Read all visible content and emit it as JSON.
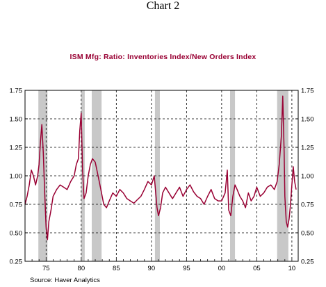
{
  "heading": "Chart 2",
  "source": "Source: Haver Analytics",
  "chart_data": {
    "type": "line",
    "title": "ISM Mfg: Ratio:  Inventories Index/New Orders Index",
    "xlabel": "",
    "ylabel": "",
    "xlim": [
      1972.0,
      2010.9
    ],
    "ylim": [
      0.25,
      1.75
    ],
    "yticks": [
      "1.75",
      "1.50",
      "1.25",
      "1.00",
      "0.75",
      "0.50",
      "0.25"
    ],
    "ytick_values": [
      1.75,
      1.5,
      1.25,
      1.0,
      0.75,
      0.5,
      0.25
    ],
    "xticks": [
      "75",
      "80",
      "85",
      "90",
      "95",
      "00",
      "05",
      "10"
    ],
    "xtick_values": [
      1975,
      1980,
      1985,
      1990,
      1995,
      2000,
      2005,
      2010
    ],
    "grid": true,
    "recession_shading": [
      [
        1973.9,
        1975.2
      ],
      [
        1980.0,
        1980.5
      ],
      [
        1981.5,
        1982.9
      ],
      [
        1990.5,
        1991.2
      ],
      [
        2001.2,
        2001.9
      ],
      [
        2007.9,
        2009.5
      ]
    ],
    "colors": {
      "line": "#990033",
      "shade": "#c8c8c8",
      "title": "#990033"
    },
    "series": [
      {
        "x": [
          1972.0,
          1972.3,
          1972.6,
          1972.9,
          1973.2,
          1973.5,
          1973.8,
          1974.0,
          1974.2,
          1974.4,
          1974.6,
          1974.8,
          1975.0,
          1975.2,
          1975.4,
          1975.7,
          1976.0,
          1976.5,
          1977.0,
          1977.5,
          1978.0,
          1978.5,
          1979.0,
          1979.3,
          1979.6,
          1979.8,
          1980.0,
          1980.2,
          1980.4,
          1980.7,
          1981.0,
          1981.3,
          1981.6,
          1982.0,
          1982.4,
          1982.8,
          1983.2,
          1983.6,
          1984.0,
          1984.5,
          1985.0,
          1985.5,
          1986.0,
          1986.5,
          1987.0,
          1987.5,
          1988.0,
          1988.5,
          1989.0,
          1989.5,
          1990.0,
          1990.4,
          1990.8,
          1991.0,
          1991.3,
          1991.6,
          1992.0,
          1992.5,
          1993.0,
          1993.5,
          1994.0,
          1994.5,
          1995.0,
          1995.5,
          1996.0,
          1996.5,
          1997.0,
          1997.5,
          1998.0,
          1998.5,
          1999.0,
          1999.5,
          2000.0,
          2000.5,
          2000.8,
          2001.0,
          2001.3,
          2001.6,
          2001.9,
          2002.2,
          2002.6,
          2003.0,
          2003.4,
          2003.8,
          2004.2,
          2004.6,
          2005.0,
          2005.5,
          2006.0,
          2006.5,
          2007.0,
          2007.5,
          2007.9,
          2008.2,
          2008.5,
          2008.7,
          2008.9,
          2009.0,
          2009.2,
          2009.4,
          2009.6,
          2009.8,
          2010.0,
          2010.2,
          2010.4,
          2010.6
        ],
        "y": [
          0.75,
          0.82,
          0.92,
          1.05,
          1.0,
          0.92,
          1.0,
          1.1,
          1.3,
          1.45,
          1.2,
          0.85,
          0.55,
          0.44,
          0.6,
          0.7,
          0.82,
          0.88,
          0.92,
          0.9,
          0.88,
          0.95,
          1.0,
          1.1,
          1.15,
          1.4,
          1.55,
          1.05,
          0.8,
          0.85,
          1.0,
          1.1,
          1.15,
          1.12,
          1.0,
          0.88,
          0.75,
          0.72,
          0.78,
          0.85,
          0.82,
          0.88,
          0.85,
          0.8,
          0.78,
          0.76,
          0.79,
          0.82,
          0.88,
          0.95,
          0.92,
          1.0,
          0.72,
          0.65,
          0.72,
          0.85,
          0.9,
          0.85,
          0.8,
          0.85,
          0.9,
          0.82,
          0.88,
          0.92,
          0.86,
          0.82,
          0.8,
          0.75,
          0.82,
          0.88,
          0.8,
          0.78,
          0.78,
          0.85,
          1.05,
          0.7,
          0.65,
          0.82,
          0.92,
          0.88,
          0.82,
          0.78,
          0.72,
          0.85,
          0.78,
          0.82,
          0.9,
          0.82,
          0.85,
          0.9,
          0.92,
          0.88,
          0.95,
          1.1,
          1.35,
          1.7,
          1.2,
          0.82,
          0.6,
          0.55,
          0.62,
          0.75,
          0.92,
          1.08,
          0.95,
          0.88
        ]
      }
    ]
  }
}
